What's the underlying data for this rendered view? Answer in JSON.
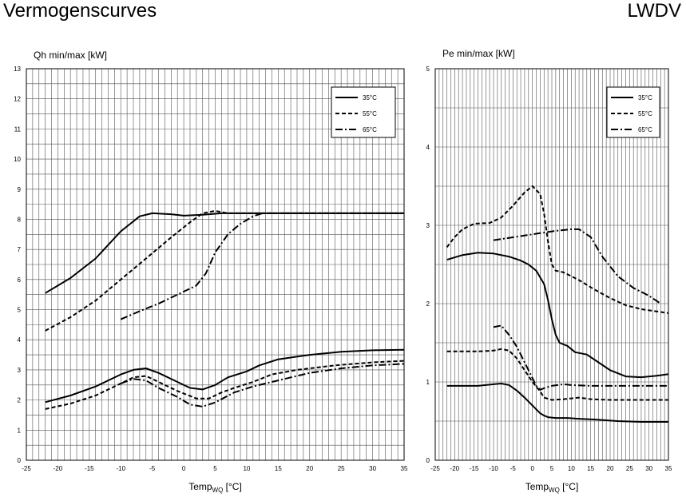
{
  "header": {
    "title": "Vermogenscurves",
    "brand": "LWDV"
  },
  "chart_data": [
    {
      "id": "qh",
      "type": "line",
      "title": "",
      "ylabel": "Qh min/max [kW]",
      "xlabel_main": "Temp",
      "xlabel_sub": "WQ",
      "xlabel_unit": " [°C]",
      "xlim": [
        -25,
        35
      ],
      "ylim": [
        0,
        13
      ],
      "xticks": [
        -25,
        -20,
        -15,
        -10,
        -5,
        0,
        5,
        10,
        15,
        20,
        25,
        30,
        35
      ],
      "yticks": [
        0,
        1,
        2,
        3,
        4,
        5,
        6,
        7,
        8,
        9,
        10,
        11,
        12,
        13
      ],
      "xminor": 1,
      "yminor": 0.5,
      "legend_position": "top-right",
      "legend": [
        {
          "name": "35°C",
          "dash": "solid"
        },
        {
          "name": "55°C",
          "dash": "dashed"
        },
        {
          "name": "65°C",
          "dash": "dashdot"
        }
      ],
      "series": [
        {
          "name": "35°C max",
          "dash": "solid",
          "points": [
            [
              -22,
              5.55
            ],
            [
              -18,
              6.05
            ],
            [
              -14,
              6.7
            ],
            [
              -10,
              7.6
            ],
            [
              -7,
              8.1
            ],
            [
              -5,
              8.2
            ],
            [
              -2,
              8.17
            ],
            [
              0,
              8.12
            ],
            [
              3,
              8.15
            ],
            [
              6,
              8.2
            ],
            [
              10,
              8.2
            ],
            [
              20,
              8.2
            ],
            [
              35,
              8.2
            ]
          ]
        },
        {
          "name": "55°C max",
          "dash": "dashed",
          "points": [
            [
              -22,
              4.3
            ],
            [
              -18,
              4.75
            ],
            [
              -14,
              5.3
            ],
            [
              -10,
              6.0
            ],
            [
              -6,
              6.7
            ],
            [
              -2,
              7.4
            ],
            [
              1,
              7.9
            ],
            [
              3,
              8.2
            ],
            [
              5,
              8.28
            ],
            [
              7,
              8.2
            ],
            [
              10,
              8.2
            ],
            [
              35,
              8.2
            ]
          ]
        },
        {
          "name": "65°C max",
          "dash": "dashdot",
          "points": [
            [
              -10,
              4.68
            ],
            [
              -7,
              4.95
            ],
            [
              -4,
              5.2
            ],
            [
              -1,
              5.5
            ],
            [
              2,
              5.8
            ],
            [
              3.5,
              6.2
            ],
            [
              5,
              6.9
            ],
            [
              7,
              7.5
            ],
            [
              9,
              7.85
            ],
            [
              11,
              8.1
            ],
            [
              12.5,
              8.2
            ],
            [
              35,
              8.2
            ]
          ]
        },
        {
          "name": "35°C min",
          "dash": "solid",
          "points": [
            [
              -22,
              1.93
            ],
            [
              -18,
              2.15
            ],
            [
              -14,
              2.45
            ],
            [
              -10,
              2.85
            ],
            [
              -8,
              3.0
            ],
            [
              -6,
              3.05
            ],
            [
              -4,
              2.9
            ],
            [
              -1,
              2.6
            ],
            [
              1,
              2.4
            ],
            [
              3,
              2.35
            ],
            [
              5,
              2.5
            ],
            [
              7,
              2.75
            ],
            [
              10,
              2.95
            ],
            [
              12,
              3.15
            ],
            [
              15,
              3.35
            ],
            [
              20,
              3.5
            ],
            [
              25,
              3.6
            ],
            [
              30,
              3.65
            ],
            [
              35,
              3.67
            ]
          ]
        },
        {
          "name": "55°C min",
          "dash": "dashed",
          "points": [
            [
              -22,
              1.7
            ],
            [
              -18,
              1.88
            ],
            [
              -14,
              2.15
            ],
            [
              -10,
              2.55
            ],
            [
              -8,
              2.75
            ],
            [
              -6,
              2.8
            ],
            [
              -4,
              2.6
            ],
            [
              -1,
              2.3
            ],
            [
              2,
              2.05
            ],
            [
              4,
              2.05
            ],
            [
              6,
              2.25
            ],
            [
              8,
              2.4
            ],
            [
              11,
              2.6
            ],
            [
              14,
              2.85
            ],
            [
              18,
              3.0
            ],
            [
              24,
              3.15
            ],
            [
              30,
              3.25
            ],
            [
              35,
              3.3
            ]
          ]
        },
        {
          "name": "65°C min",
          "dash": "dashdot",
          "points": [
            [
              -10,
              2.55
            ],
            [
              -8,
              2.7
            ],
            [
              -6,
              2.65
            ],
            [
              -4,
              2.4
            ],
            [
              -1,
              2.1
            ],
            [
              1,
              1.85
            ],
            [
              3,
              1.78
            ],
            [
              5,
              1.92
            ],
            [
              8,
              2.25
            ],
            [
              11,
              2.45
            ],
            [
              15,
              2.65
            ],
            [
              20,
              2.9
            ],
            [
              25,
              3.05
            ],
            [
              30,
              3.15
            ],
            [
              35,
              3.2
            ]
          ]
        }
      ]
    },
    {
      "id": "pe",
      "type": "line",
      "title": "",
      "ylabel": "Pe min/max [kW]",
      "xlabel_main": "Temp",
      "xlabel_sub": "WQ",
      "xlabel_unit": " [°C]",
      "xlim": [
        -25,
        35
      ],
      "ylim": [
        0,
        5
      ],
      "xticks": [
        -25,
        -20,
        -15,
        -10,
        -5,
        0,
        5,
        10,
        15,
        20,
        25,
        30,
        35
      ],
      "yticks": [
        0,
        1,
        2,
        3,
        4,
        5
      ],
      "xminor": 1,
      "yminor": 0.5,
      "legend_position": "top-right",
      "legend": [
        {
          "name": "35°C",
          "dash": "solid"
        },
        {
          "name": "55°C",
          "dash": "dashed"
        },
        {
          "name": "65°C",
          "dash": "dashdot"
        }
      ],
      "series": [
        {
          "name": "35°C max",
          "dash": "solid",
          "points": [
            [
              -22,
              2.56
            ],
            [
              -18,
              2.62
            ],
            [
              -14,
              2.65
            ],
            [
              -10,
              2.64
            ],
            [
              -6,
              2.6
            ],
            [
              -3,
              2.55
            ],
            [
              -1,
              2.5
            ],
            [
              1,
              2.42
            ],
            [
              3,
              2.25
            ],
            [
              4,
              2.05
            ],
            [
              5,
              1.8
            ],
            [
              6,
              1.6
            ],
            [
              7,
              1.5
            ],
            [
              9,
              1.46
            ],
            [
              10,
              1.42
            ],
            [
              11,
              1.38
            ],
            [
              14,
              1.35
            ],
            [
              17,
              1.25
            ],
            [
              20,
              1.15
            ],
            [
              24,
              1.07
            ],
            [
              28,
              1.06
            ],
            [
              32,
              1.08
            ],
            [
              35,
              1.1
            ]
          ]
        },
        {
          "name": "55°C max",
          "dash": "dashed",
          "points": [
            [
              -22,
              2.72
            ],
            [
              -20,
              2.85
            ],
            [
              -18,
              2.95
            ],
            [
              -15,
              3.02
            ],
            [
              -11,
              3.03
            ],
            [
              -8,
              3.1
            ],
            [
              -5,
              3.25
            ],
            [
              -2,
              3.42
            ],
            [
              0,
              3.5
            ],
            [
              2,
              3.4
            ],
            [
              3,
              3.15
            ],
            [
              4,
              2.8
            ],
            [
              5,
              2.5
            ],
            [
              6,
              2.42
            ],
            [
              8,
              2.4
            ],
            [
              12,
              2.3
            ],
            [
              16,
              2.18
            ],
            [
              20,
              2.07
            ],
            [
              24,
              1.98
            ],
            [
              28,
              1.93
            ],
            [
              32,
              1.9
            ],
            [
              35,
              1.88
            ]
          ]
        },
        {
          "name": "65°C max",
          "dash": "dashdot",
          "points": [
            [
              -10,
              2.81
            ],
            [
              -6,
              2.84
            ],
            [
              -2,
              2.87
            ],
            [
              2,
              2.9
            ],
            [
              6,
              2.93
            ],
            [
              10,
              2.95
            ],
            [
              12,
              2.95
            ],
            [
              15,
              2.85
            ],
            [
              18,
              2.6
            ],
            [
              22,
              2.35
            ],
            [
              26,
              2.2
            ],
            [
              30,
              2.1
            ],
            [
              33,
              2.0
            ]
          ]
        },
        {
          "name": "35°C min",
          "dash": "solid",
          "points": [
            [
              -22,
              0.95
            ],
            [
              -18,
              0.95
            ],
            [
              -14,
              0.95
            ],
            [
              -10,
              0.97
            ],
            [
              -8,
              0.98
            ],
            [
              -6,
              0.96
            ],
            [
              -4,
              0.89
            ],
            [
              -2,
              0.8
            ],
            [
              0,
              0.7
            ],
            [
              1,
              0.65
            ],
            [
              2,
              0.6
            ],
            [
              3,
              0.57
            ],
            [
              4,
              0.55
            ],
            [
              6,
              0.54
            ],
            [
              9,
              0.54
            ],
            [
              12,
              0.53
            ],
            [
              16,
              0.52
            ],
            [
              22,
              0.5
            ],
            [
              28,
              0.49
            ],
            [
              35,
              0.49
            ]
          ]
        },
        {
          "name": "55°C min",
          "dash": "dashed",
          "points": [
            [
              -22,
              1.39
            ],
            [
              -18,
              1.39
            ],
            [
              -14,
              1.39
            ],
            [
              -10,
              1.4
            ],
            [
              -8,
              1.42
            ],
            [
              -6,
              1.4
            ],
            [
              -4,
              1.3
            ],
            [
              -2,
              1.15
            ],
            [
              0,
              1.0
            ],
            [
              2,
              0.88
            ],
            [
              3,
              0.8
            ],
            [
              5,
              0.77
            ],
            [
              8,
              0.78
            ],
            [
              12,
              0.8
            ],
            [
              15,
              0.78
            ],
            [
              20,
              0.77
            ],
            [
              25,
              0.77
            ],
            [
              30,
              0.77
            ],
            [
              35,
              0.77
            ]
          ]
        },
        {
          "name": "65°C min",
          "dash": "dashdot",
          "points": [
            [
              -10,
              1.7
            ],
            [
              -8,
              1.72
            ],
            [
              -6,
              1.6
            ],
            [
              -4,
              1.45
            ],
            [
              -2,
              1.25
            ],
            [
              0,
              1.05
            ],
            [
              1,
              0.95
            ],
            [
              2,
              0.9
            ],
            [
              3,
              0.92
            ],
            [
              5,
              0.95
            ],
            [
              8,
              0.97
            ],
            [
              10,
              0.96
            ],
            [
              15,
              0.95
            ],
            [
              20,
              0.95
            ],
            [
              25,
              0.95
            ],
            [
              30,
              0.95
            ],
            [
              35,
              0.95
            ]
          ]
        }
      ]
    }
  ]
}
